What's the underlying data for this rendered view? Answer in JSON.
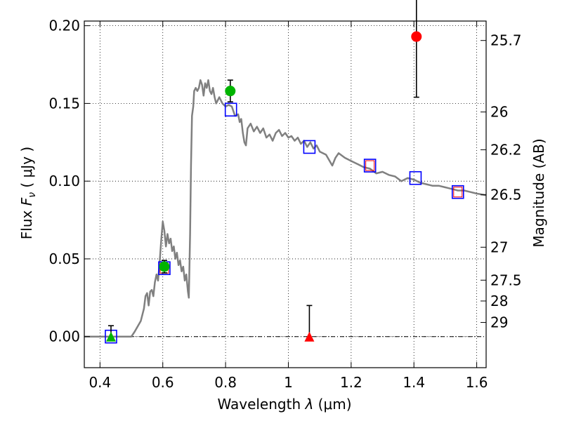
{
  "chart_data": {
    "type": "scatter",
    "xlabel": "Wavelength  λ (μm)",
    "ylabel": "Flux  F_ν  ( μJy )",
    "ylabel_parts": {
      "pre": "Flux  ",
      "var": "F",
      "sub": "ν",
      "post": "  (  μJy )"
    },
    "xlabel_parts": {
      "pre": "Wavelength  ",
      "var": "λ",
      "post": " (μm)"
    },
    "y2label": "Magnitude (AB)",
    "xlim": [
      0.35,
      1.63
    ],
    "ylim": [
      -0.02,
      0.203
    ],
    "grid": true,
    "x_ticks": [
      {
        "value": 0.4,
        "label": "0.4"
      },
      {
        "value": 0.6,
        "label": "0.6"
      },
      {
        "value": 0.8,
        "label": "0.8"
      },
      {
        "value": 1.0,
        "label": "1"
      },
      {
        "value": 1.2,
        "label": "1.2"
      },
      {
        "value": 1.4,
        "label": "1.4"
      },
      {
        "value": 1.6,
        "label": "1.6"
      }
    ],
    "y_ticks": [
      {
        "value": 0.0,
        "label": "0.00"
      },
      {
        "value": 0.05,
        "label": "0.05"
      },
      {
        "value": 0.1,
        "label": "0.10"
      },
      {
        "value": 0.15,
        "label": "0.15"
      },
      {
        "value": 0.2,
        "label": "0.20"
      }
    ],
    "magnitude_ticks": [
      {
        "label": "25.7",
        "flux": 0.1905
      },
      {
        "label": "26",
        "flux": 0.1445
      },
      {
        "label": "26.2",
        "flux": 0.1202
      },
      {
        "label": "26.5",
        "flux": 0.0912
      },
      {
        "label": "27",
        "flux": 0.0575
      },
      {
        "label": "27.5",
        "flux": 0.0363
      },
      {
        "label": "28",
        "flux": 0.0229
      },
      {
        "label": "29",
        "flux": 0.0091
      }
    ],
    "zero_line": 0.0,
    "model_sed": {
      "color": "#808080",
      "x": [
        0.35,
        0.5,
        0.51,
        0.53,
        0.54,
        0.545,
        0.55,
        0.555,
        0.56,
        0.565,
        0.57,
        0.575,
        0.58,
        0.585,
        0.59,
        0.595,
        0.6,
        0.605,
        0.61,
        0.615,
        0.62,
        0.625,
        0.63,
        0.635,
        0.64,
        0.645,
        0.65,
        0.655,
        0.66,
        0.665,
        0.67,
        0.675,
        0.68,
        0.683,
        0.687,
        0.69,
        0.693,
        0.697,
        0.7,
        0.705,
        0.71,
        0.715,
        0.72,
        0.725,
        0.73,
        0.735,
        0.74,
        0.745,
        0.75,
        0.755,
        0.76,
        0.765,
        0.77,
        0.78,
        0.79,
        0.8,
        0.81,
        0.82,
        0.83,
        0.84,
        0.845,
        0.85,
        0.855,
        0.86,
        0.865,
        0.87,
        0.88,
        0.89,
        0.9,
        0.91,
        0.92,
        0.93,
        0.94,
        0.95,
        0.96,
        0.97,
        0.98,
        0.99,
        1.0,
        1.01,
        1.02,
        1.03,
        1.04,
        1.05,
        1.06,
        1.07,
        1.08,
        1.09,
        1.1,
        1.12,
        1.14,
        1.15,
        1.16,
        1.18,
        1.2,
        1.22,
        1.24,
        1.26,
        1.28,
        1.3,
        1.32,
        1.34,
        1.36,
        1.38,
        1.4,
        1.42,
        1.44,
        1.46,
        1.48,
        1.5,
        1.52,
        1.54,
        1.56,
        1.58,
        1.6,
        1.63
      ],
      "y": [
        0.0,
        0.0,
        0.003,
        0.01,
        0.018,
        0.026,
        0.028,
        0.02,
        0.029,
        0.03,
        0.026,
        0.035,
        0.04,
        0.036,
        0.048,
        0.062,
        0.074,
        0.068,
        0.058,
        0.066,
        0.06,
        0.063,
        0.055,
        0.058,
        0.05,
        0.054,
        0.046,
        0.049,
        0.042,
        0.045,
        0.036,
        0.04,
        0.029,
        0.025,
        0.066,
        0.11,
        0.142,
        0.148,
        0.158,
        0.16,
        0.158,
        0.16,
        0.165,
        0.162,
        0.155,
        0.163,
        0.16,
        0.165,
        0.158,
        0.156,
        0.16,
        0.154,
        0.15,
        0.154,
        0.15,
        0.148,
        0.149,
        0.148,
        0.142,
        0.143,
        0.138,
        0.14,
        0.131,
        0.125,
        0.123,
        0.134,
        0.137,
        0.132,
        0.135,
        0.131,
        0.134,
        0.128,
        0.13,
        0.126,
        0.131,
        0.133,
        0.129,
        0.131,
        0.128,
        0.129,
        0.126,
        0.128,
        0.124,
        0.126,
        0.122,
        0.125,
        0.121,
        0.123,
        0.119,
        0.117,
        0.11,
        0.115,
        0.118,
        0.115,
        0.113,
        0.111,
        0.109,
        0.108,
        0.105,
        0.106,
        0.104,
        0.103,
        0.1,
        0.102,
        0.101,
        0.099,
        0.098,
        0.097,
        0.097,
        0.096,
        0.095,
        0.094,
        0.094,
        0.093,
        0.092,
        0.091
      ]
    },
    "model_photometry": {
      "name": "model",
      "marker": "open-square",
      "points": [
        {
          "x": 0.435,
          "y": 0.0,
          "edge": "#0000ff",
          "inner": null
        },
        {
          "x": 0.605,
          "y": 0.044,
          "edge": "#0000ff",
          "inner": "#ff0000"
        },
        {
          "x": 0.817,
          "y": 0.146,
          "edge": "#0000ff",
          "inner": null
        },
        {
          "x": 1.067,
          "y": 0.122,
          "edge": "#0000ff",
          "inner": null
        },
        {
          "x": 1.26,
          "y": 0.11,
          "edge": "#0000ff",
          "inner": "#ff0000"
        },
        {
          "x": 1.405,
          "y": 0.102,
          "edge": "#0000ff",
          "inner": null
        },
        {
          "x": 1.54,
          "y": 0.093,
          "edge": "#0000ff",
          "inner": "#ff0000"
        }
      ]
    },
    "observations": [
      {
        "x": 0.435,
        "y": 0.0,
        "yerr_low": 0.0,
        "yerr_high": 0.007,
        "marker": "triangle",
        "color": "#00b400"
      },
      {
        "x": 0.605,
        "y": 0.045,
        "yerr_low": 0.004,
        "yerr_high": 0.004,
        "marker": "circle",
        "color": "#00b400"
      },
      {
        "x": 0.815,
        "y": 0.158,
        "yerr_low": 0.007,
        "yerr_high": 0.007,
        "marker": "circle",
        "color": "#00b400"
      },
      {
        "x": 1.067,
        "y": 0.0,
        "yerr_low": 0.0,
        "yerr_high": 0.02,
        "marker": "triangle",
        "color": "#ff0000"
      },
      {
        "x": 1.408,
        "y": 0.193,
        "yerr_low": 0.039,
        "yerr_high": 0.039,
        "marker": "circle",
        "color": "#ff0000"
      }
    ]
  }
}
